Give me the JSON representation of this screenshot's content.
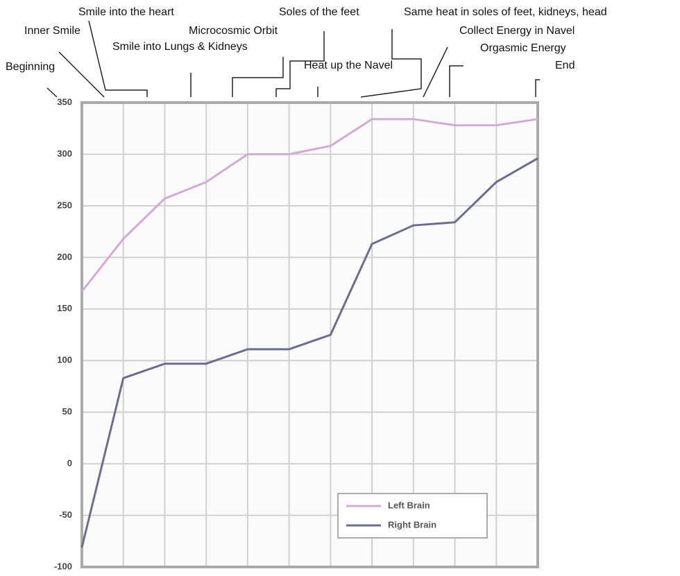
{
  "chart_data": {
    "type": "line",
    "annotations": [
      "Beginning",
      "Inner Smile",
      "Smile into the heart",
      "Smile into Lungs & Kidneys",
      "Microcosmic Orbit",
      "Soles of the feet",
      "Heat up the Navel",
      "Same heat in soles of feet, kidneys, head",
      "Collect Energy in Navel",
      "Orgasmic Energy",
      "End"
    ],
    "categories": [
      null,
      null,
      null,
      null,
      null,
      null,
      null,
      null,
      null,
      null,
      null,
      null
    ],
    "series": [
      {
        "name": "Left Brain",
        "color": "#d4a9d6",
        "values": [
          167,
          218,
          257,
          273,
          300,
          300,
          308,
          334,
          334,
          328,
          328,
          334
        ]
      },
      {
        "name": "Right Brain",
        "color": "#6e6c8c",
        "values": [
          -81,
          83,
          97,
          97,
          111,
          111,
          125,
          213,
          231,
          234,
          273,
          296
        ]
      }
    ],
    "ylim": [
      -100,
      350
    ],
    "yticks": [
      -100,
      -50,
      0,
      50,
      100,
      150,
      200,
      250,
      300,
      350
    ],
    "grid": true,
    "legend": "lower right"
  }
}
